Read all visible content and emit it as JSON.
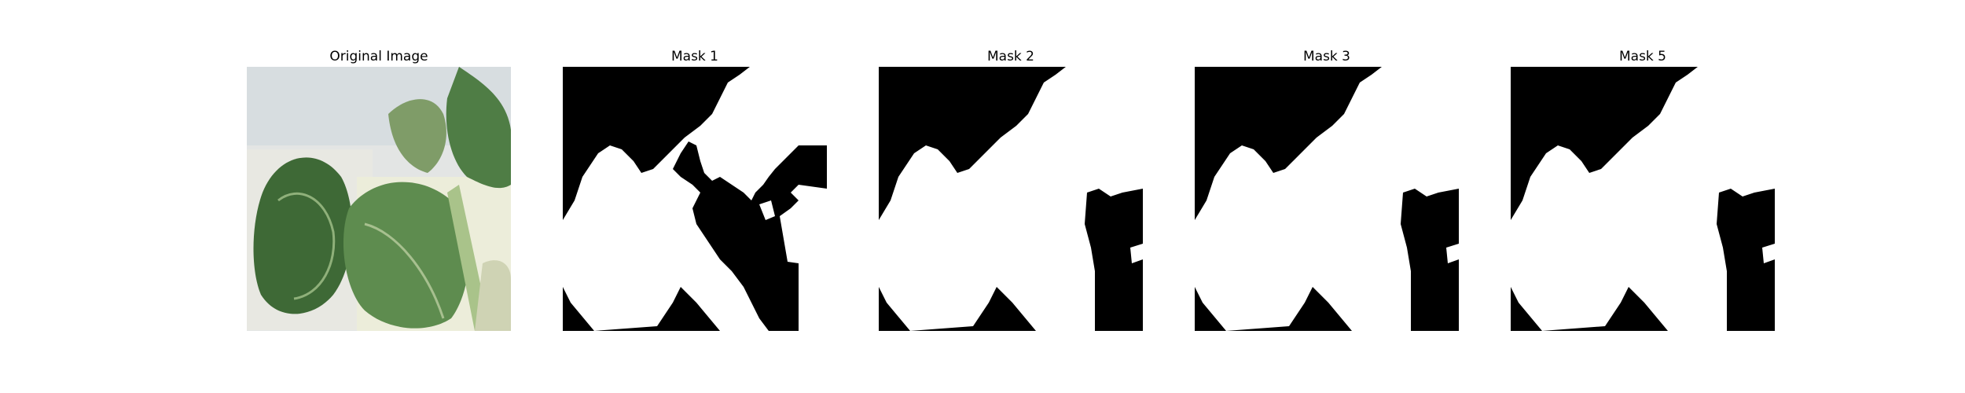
{
  "panels": [
    {
      "title": "Original Image",
      "kind": "photo"
    },
    {
      "title": "Mask 1",
      "kind": "mask"
    },
    {
      "title": "Mask 2",
      "kind": "mask"
    },
    {
      "title": "Mask 3",
      "kind": "mask"
    },
    {
      "title": "Mask 5",
      "kind": "mask"
    }
  ],
  "colors": {
    "mask_foreground": "#ffffff",
    "mask_background": "#000000",
    "leaf_dark": "#3f6a3a",
    "leaf_mid": "#5d8a4f",
    "leaf_light": "#8fb07a",
    "backdrop": "#e4e6e6"
  }
}
